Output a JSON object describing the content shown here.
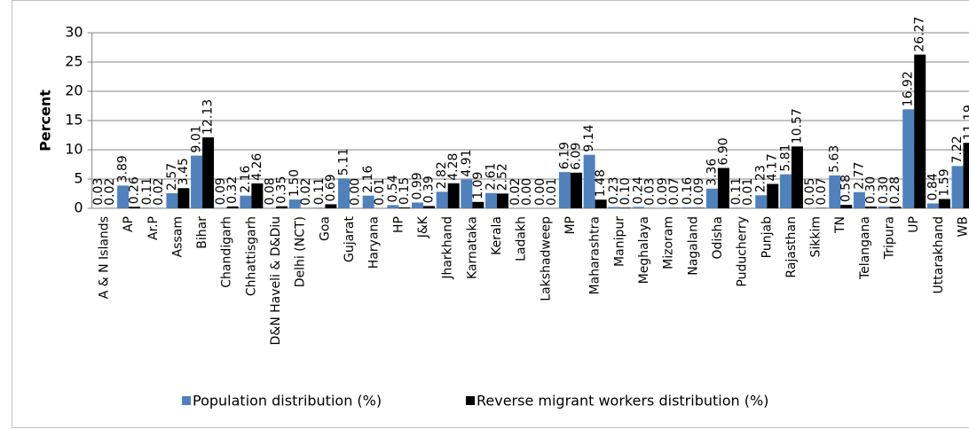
{
  "chart_data": {
    "type": "bar",
    "y_label": "Percent",
    "categories": [
      "A & N Islands",
      "AP",
      "Ar.P",
      "Assam",
      "Bihar",
      "Chandigarh",
      "Chhattisgarh",
      "D&N Haveli & D&Diu",
      "Delhi (NCT)",
      "Goa",
      "Gujarat",
      "Haryana",
      "HP",
      "J&K",
      "Jharkhand",
      "Karnataka",
      "Kerala",
      "Ladakh",
      "Lakshadweep",
      "MP",
      "Maharashtra",
      "Manipur",
      "Meghalaya",
      "Mizoram",
      "Nagaland",
      "Odisha",
      "Puducherry",
      "Punjab",
      "Rajasthan",
      "Sikkim",
      "TN",
      "Telangana",
      "Tripura",
      "UP",
      "Uttarakhand",
      "WB"
    ],
    "series": [
      {
        "name": "Population distribution (%)",
        "color": "#4f81bd",
        "values": [
          0.03,
          3.89,
          0.11,
          2.57,
          9.01,
          0.09,
          2.16,
          0.08,
          1.5,
          0.11,
          5.11,
          2.16,
          0.54,
          0.99,
          2.82,
          4.91,
          2.61,
          0.02,
          0,
          6.19,
          9.14,
          0.23,
          0.24,
          0.09,
          0.16,
          3.36,
          0.11,
          2.23,
          5.81,
          0.05,
          5.63,
          2.77,
          0.3,
          16.92,
          0.84,
          7.22
        ],
        "value_labels": [
          "0.03",
          "3.89",
          "0.11",
          "2.57",
          "9.01",
          "0.09",
          "2.16",
          "0.08",
          "1.50",
          "0.11",
          "5.11",
          "2.16",
          "0.54",
          "0.99",
          "2.82",
          "4.91",
          "2.61",
          "0.02",
          "0.00",
          "6.19",
          "9.14",
          "0.23",
          "0.24",
          "0.09",
          "0.16",
          "3.36",
          "0.11",
          "2.23",
          "5.81",
          "0.05",
          "5.63",
          "2.77",
          "0.30",
          "16.92",
          "0.84",
          "7.22"
        ]
      },
      {
        "name": "Reverse migrant workers distribution (%)",
        "color": "#000000",
        "values": [
          0.02,
          0.26,
          0.02,
          3.45,
          12.13,
          0.32,
          4.26,
          0.35,
          0.02,
          0.69,
          0,
          0.01,
          0.15,
          0.39,
          4.28,
          1.09,
          2.52,
          0,
          0.01,
          6.09,
          1.48,
          0.1,
          0.03,
          0.07,
          0.09,
          6.9,
          0.01,
          4.17,
          10.57,
          0.07,
          0.58,
          0.3,
          0.28,
          26.27,
          1.59,
          11.19
        ],
        "value_labels": [
          "0.02",
          "0.26",
          "0.02",
          "3.45",
          "12.13",
          "0.32",
          "4.26",
          "0.35",
          "0.02",
          "0.69",
          "0.00",
          "0.01",
          "0.15",
          "0.39",
          "4.28",
          "1.09",
          "2.52",
          "0.00",
          "0.01",
          "6.09",
          "1.48",
          "0.10",
          "0.03",
          "0.07",
          "0.09",
          "6.90",
          "0.01",
          "4.17",
          "10.57",
          "0.07",
          "0.58",
          "0.30",
          "0.28",
          "26.27",
          "1.59",
          "11.19"
        ]
      }
    ],
    "ylim": [
      0,
      30
    ],
    "yticks": [
      0,
      5,
      10,
      15,
      20,
      25,
      30
    ],
    "grid": true,
    "legend": "bottom"
  }
}
